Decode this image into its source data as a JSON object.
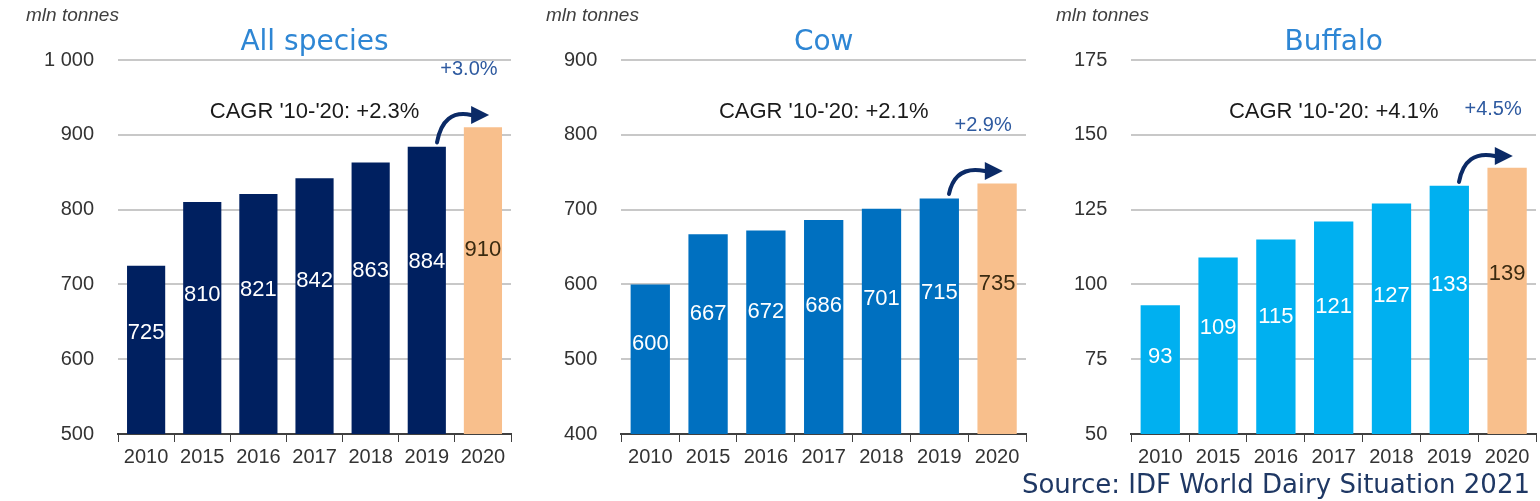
{
  "chart_data": [
    {
      "type": "bar",
      "title": "All species",
      "ylabel": "mln tonnes",
      "categories": [
        "2010",
        "2015",
        "2016",
        "2017",
        "2018",
        "2019",
        "2020"
      ],
      "values": [
        725,
        810,
        821,
        842,
        863,
        884,
        910
      ],
      "colors": [
        "#002060",
        "#002060",
        "#002060",
        "#002060",
        "#002060",
        "#002060",
        "#f8bf8c"
      ],
      "ylim": [
        500,
        1000
      ],
      "yticks": [
        500,
        600,
        700,
        800,
        900,
        {
          "value": 1000,
          "label": "1 000"
        }
      ],
      "grid": "y",
      "data_labels": true,
      "legend": false,
      "annotations": [
        "CAGR '10-'20: +2.3%",
        "+3.0%"
      ]
    },
    {
      "type": "bar",
      "title": "Cow",
      "ylabel": "mln tonnes",
      "categories": [
        "2010",
        "2015",
        "2016",
        "2017",
        "2018",
        "2019",
        "2020"
      ],
      "values": [
        600,
        667,
        672,
        686,
        701,
        715,
        735
      ],
      "colors": [
        "#0070c0",
        "#0070c0",
        "#0070c0",
        "#0070c0",
        "#0070c0",
        "#0070c0",
        "#f8bf8c"
      ],
      "ylim": [
        400,
        900
      ],
      "yticks": [
        400,
        500,
        600,
        700,
        800,
        900
      ],
      "grid": "y",
      "data_labels": true,
      "legend": false,
      "annotations": [
        "CAGR '10-'20: +2.1%",
        "+2.9%"
      ]
    },
    {
      "type": "bar",
      "title": "Buffalo",
      "ylabel": "mln tonnes",
      "categories": [
        "2010",
        "2015",
        "2016",
        "2017",
        "2018",
        "2019",
        "2020"
      ],
      "values": [
        93,
        109,
        115,
        121,
        127,
        133,
        139
      ],
      "colors": [
        "#00b0f0",
        "#00b0f0",
        "#00b0f0",
        "#00b0f0",
        "#00b0f0",
        "#00b0f0",
        "#f8bf8c"
      ],
      "ylim": [
        50,
        175
      ],
      "yticks": [
        50,
        75,
        100,
        125,
        150,
        175
      ],
      "grid": "y",
      "data_labels": true,
      "legend": false,
      "annotations": [
        "CAGR '10-'20: +4.1%",
        "+4.5%",
        "Source: IDF World Dairy Situation 2021"
      ]
    }
  ]
}
